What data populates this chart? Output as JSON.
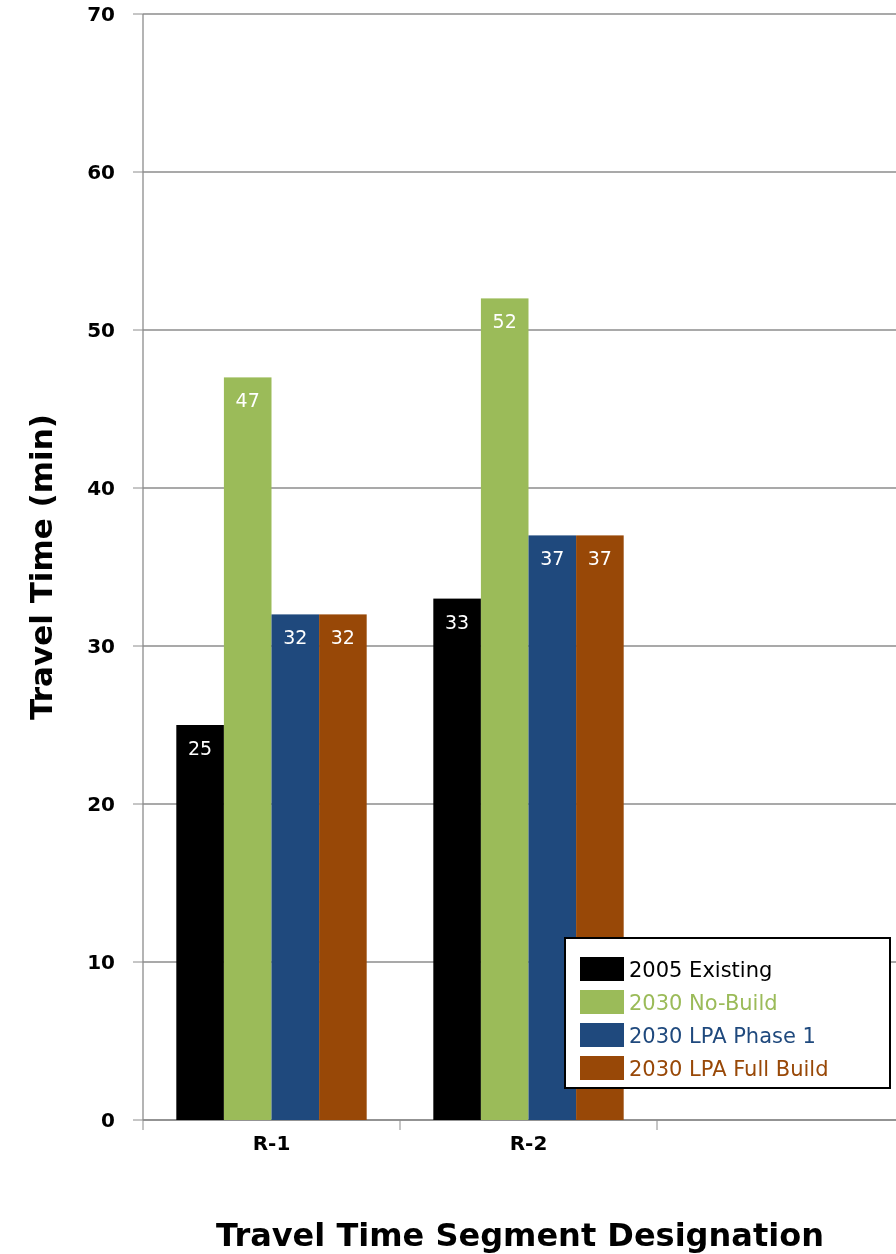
{
  "chart_data": {
    "type": "bar",
    "xlabel": "Travel Time Segment Designation",
    "ylabel": "Travel Time (min)",
    "categories": [
      "R-1",
      "R-2",
      null
    ],
    "series": [
      {
        "name": "2005 Existing",
        "color": "#000000",
        "values": [
          25,
          33,
          null
        ]
      },
      {
        "name": "2030 No-Build",
        "color": "#9bbb59",
        "values": [
          47,
          52,
          null
        ]
      },
      {
        "name": "2030 LPA Phase 1",
        "color": "#1f497d",
        "values": [
          32,
          37,
          null
        ]
      },
      {
        "name": "2030 LPA Full Build",
        "color": "#984807",
        "values": [
          32,
          37,
          null
        ]
      }
    ],
    "ylim": [
      0,
      70
    ],
    "yticks": [
      0,
      10,
      20,
      30,
      40,
      50,
      60,
      70
    ],
    "grid": "y",
    "legend": "bottom right",
    "data_labels": true
  }
}
